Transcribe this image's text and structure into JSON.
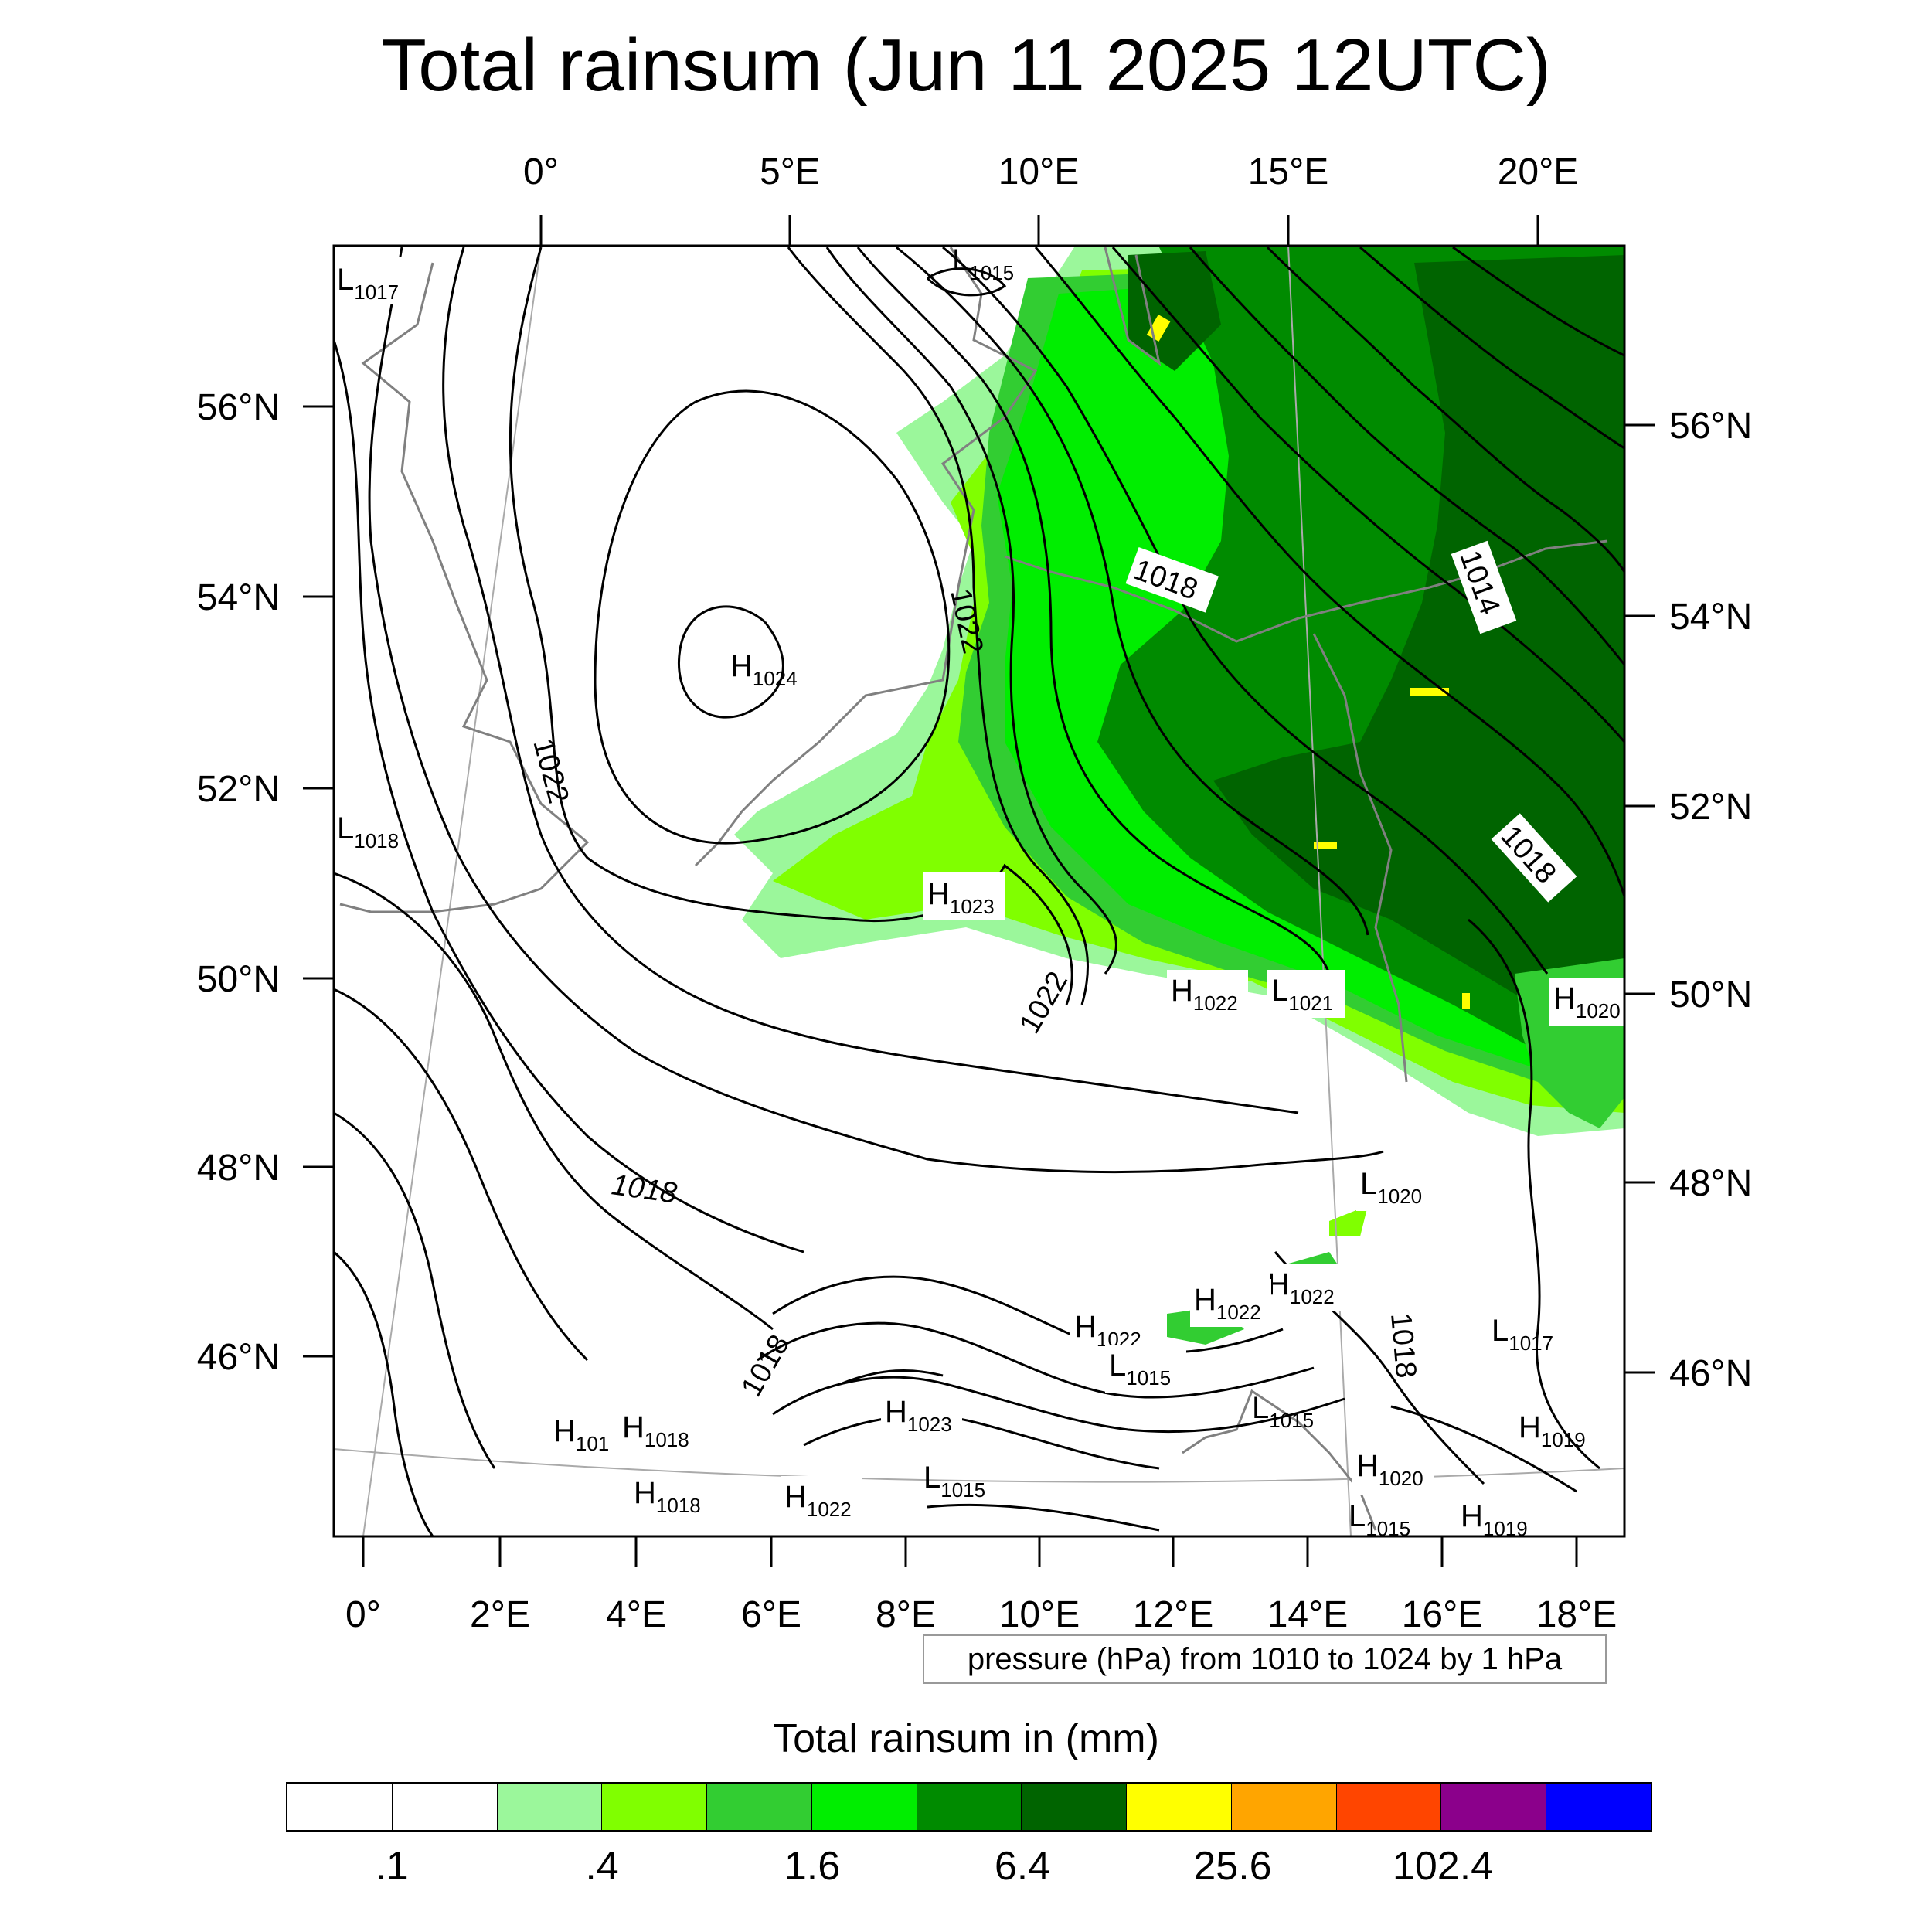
{
  "title": "Total rainsum (Jun 11 2025 12UTC)",
  "top_axis_labels": [
    "0°",
    "5°E",
    "10°E",
    "15°E",
    "20°E"
  ],
  "bottom_axis_labels": [
    "0°",
    "2°E",
    "4°E",
    "6°E",
    "8°E",
    "10°E",
    "12°E",
    "14°E",
    "16°E",
    "18°E"
  ],
  "left_axis_labels": [
    "56°N",
    "54°N",
    "52°N",
    "50°N",
    "48°N",
    "46°N"
  ],
  "right_axis_labels": [
    "56°N",
    "54°N",
    "52°N",
    "50°N",
    "48°N",
    "46°N"
  ],
  "isobar_labels": [
    "1022",
    "1022",
    "1022",
    "1018",
    "1014",
    "1018",
    "1018",
    "1018",
    "1018"
  ],
  "pressure_centers": [
    {
      "letter": "L",
      "value": "1017"
    },
    {
      "letter": "L",
      "value": "1015"
    },
    {
      "letter": "H",
      "value": "1024"
    },
    {
      "letter": "L",
      "value": "1018"
    },
    {
      "letter": "H",
      "value": "1023"
    },
    {
      "letter": "H",
      "value": "1022"
    },
    {
      "letter": "L",
      "value": "1021"
    },
    {
      "letter": "H",
      "value": "1020"
    },
    {
      "letter": "L",
      "value": "1020"
    },
    {
      "letter": "H",
      "value": "1022"
    },
    {
      "letter": "H",
      "value": "1022"
    },
    {
      "letter": "H",
      "value": "1022"
    },
    {
      "letter": "L",
      "value": "1015"
    },
    {
      "letter": "L",
      "value": "1017"
    },
    {
      "letter": "H",
      "value": "101"
    },
    {
      "letter": "H",
      "value": "1018"
    },
    {
      "letter": "H",
      "value": "1023"
    },
    {
      "letter": "L",
      "value": "1015"
    },
    {
      "letter": "H",
      "value": "1019"
    },
    {
      "letter": "H",
      "value": "1018"
    },
    {
      "letter": "H",
      "value": "1022"
    },
    {
      "letter": "H",
      "value": "1020"
    },
    {
      "letter": "L",
      "value": "1015"
    },
    {
      "letter": "H",
      "value": "1019"
    },
    {
      "letter": "L",
      "value": "1015"
    }
  ],
  "contour_note": "pressure (hPa) from 1010 to 1024 by 1 hPa",
  "colorbar": {
    "title": "Total rainsum in (mm)",
    "colors": [
      "#ffffff",
      "#ffffff",
      "#9bf79b",
      "#80ff00",
      "#32cd32",
      "#00ee00",
      "#008b00",
      "#006400",
      "#ffff00",
      "#ffa500",
      "#ff4500",
      "#8b008b",
      "#0000ff"
    ],
    "tick_labels": [
      ".1",
      ".4",
      "1.6",
      "6.4",
      "25.6",
      "102.4"
    ]
  },
  "map_colors": {
    "light": "#9bf79b",
    "lime": "#80ff00",
    "mid": "#32cd32",
    "bright": "#00ee00",
    "dark": "#008b00",
    "darker": "#006400",
    "yellow": "#ffff00",
    "coast": "#808080",
    "isobar": "#000000"
  }
}
